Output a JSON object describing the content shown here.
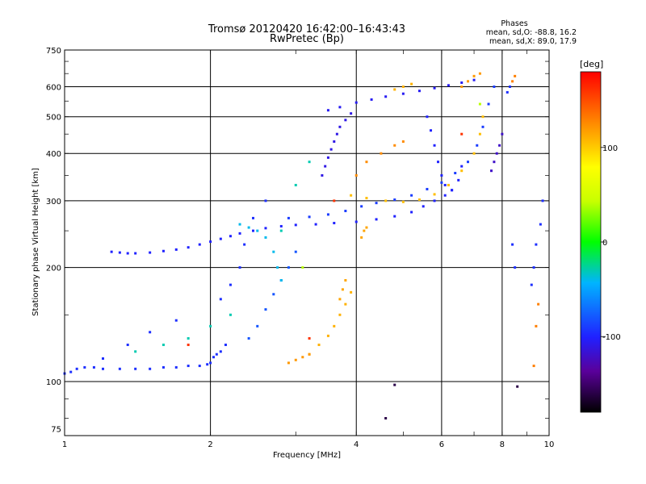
{
  "chart_data": {
    "type": "scatter",
    "title": "Tromsø 20120420 16:42:00–16:43:43",
    "subtitle": "RwPretec (Bp)",
    "xlabel": "Frequency [MHz]",
    "ylabel": "Stationary phase Virtual Height [km]",
    "x_scale": "log",
    "y_scale": "log",
    "xlim": [
      1,
      10
    ],
    "ylim": [
      72,
      750
    ],
    "x_ticks": [
      "1",
      "2",
      "4",
      "6",
      "8",
      "10"
    ],
    "x_tick_values": [
      1,
      2,
      4,
      6,
      8,
      10
    ],
    "y_ticks": [
      "75",
      "100",
      "200",
      "300",
      "400",
      "500",
      "600",
      "750"
    ],
    "y_tick_values": [
      75,
      100,
      200,
      300,
      400,
      500,
      600,
      750
    ],
    "grid": true,
    "stats": {
      "heading": "Phases",
      "line1": "mean, sd,O: -88.8, 16.2",
      "line2": "mean, sd,X: 89.0, 17.9"
    },
    "colorbar": {
      "label": "[deg]",
      "range": [
        -180,
        180
      ],
      "ticks": [
        "100",
        "0",
        "-100"
      ],
      "tick_values": [
        100,
        0,
        -100
      ]
    },
    "series": [
      {
        "phase": -95,
        "points": [
          [
            1.0,
            105
          ],
          [
            1.03,
            106
          ],
          [
            1.06,
            108
          ],
          [
            1.1,
            109
          ],
          [
            1.15,
            109
          ],
          [
            1.2,
            108
          ],
          [
            1.3,
            108
          ],
          [
            1.4,
            108
          ],
          [
            1.5,
            108
          ],
          [
            1.6,
            109
          ],
          [
            1.7,
            109
          ],
          [
            1.8,
            110
          ],
          [
            1.9,
            110
          ],
          [
            1.97,
            111
          ],
          [
            2.0,
            112
          ],
          [
            2.03,
            116
          ],
          [
            2.06,
            118
          ],
          [
            2.1,
            120
          ],
          [
            2.15,
            125
          ]
        ]
      },
      {
        "phase": -100,
        "points": [
          [
            1.25,
            220
          ],
          [
            1.3,
            219
          ],
          [
            1.35,
            218
          ],
          [
            1.4,
            218
          ],
          [
            1.5,
            219
          ],
          [
            1.6,
            221
          ],
          [
            1.7,
            223
          ],
          [
            1.8,
            226
          ],
          [
            1.9,
            230
          ],
          [
            2.0,
            234
          ],
          [
            2.1,
            238
          ],
          [
            2.2,
            242
          ],
          [
            2.3,
            246
          ],
          [
            2.45,
            250
          ],
          [
            2.6,
            254
          ],
          [
            2.8,
            257
          ],
          [
            3.0,
            259
          ],
          [
            3.3,
            260
          ],
          [
            3.6,
            262
          ],
          [
            4.0,
            264
          ],
          [
            4.4,
            268
          ],
          [
            4.8,
            273
          ],
          [
            5.2,
            280
          ],
          [
            5.5,
            290
          ],
          [
            5.8,
            300
          ],
          [
            6.1,
            310
          ],
          [
            6.3,
            320
          ],
          [
            6.5,
            340
          ],
          [
            6.6,
            370
          ]
        ]
      },
      {
        "phase": -90,
        "points": [
          [
            2.9,
            270
          ],
          [
            3.2,
            272
          ],
          [
            3.5,
            276
          ],
          [
            3.8,
            282
          ],
          [
            4.1,
            290
          ],
          [
            4.4,
            296
          ],
          [
            4.8,
            302
          ],
          [
            5.2,
            310
          ],
          [
            5.6,
            322
          ],
          [
            6.0,
            335
          ],
          [
            6.4,
            355
          ],
          [
            6.8,
            380
          ],
          [
            7.1,
            420
          ],
          [
            7.3,
            470
          ],
          [
            7.5,
            540
          ],
          [
            7.7,
            600
          ]
        ]
      },
      {
        "phase": -105,
        "points": [
          [
            3.5,
            520
          ],
          [
            3.7,
            530
          ],
          [
            4.0,
            545
          ],
          [
            4.3,
            555
          ],
          [
            4.6,
            565
          ],
          [
            5.0,
            575
          ],
          [
            5.4,
            585
          ],
          [
            5.8,
            595
          ],
          [
            6.2,
            605
          ],
          [
            6.6,
            615
          ],
          [
            7.0,
            625
          ]
        ]
      },
      {
        "phase": -110,
        "points": [
          [
            3.4,
            350
          ],
          [
            3.45,
            370
          ],
          [
            3.5,
            390
          ],
          [
            3.55,
            410
          ],
          [
            3.6,
            430
          ],
          [
            3.65,
            450
          ],
          [
            3.7,
            470
          ],
          [
            3.8,
            490
          ],
          [
            3.9,
            510
          ]
        ]
      },
      {
        "phase": -80,
        "points": [
          [
            2.4,
            130
          ],
          [
            2.5,
            140
          ],
          [
            2.6,
            155
          ],
          [
            2.7,
            170
          ],
          [
            2.8,
            185
          ],
          [
            2.9,
            200
          ],
          [
            3.0,
            220
          ]
        ]
      },
      {
        "phase": -100,
        "points": [
          [
            5.6,
            500
          ],
          [
            5.7,
            460
          ],
          [
            5.8,
            420
          ],
          [
            5.9,
            380
          ],
          [
            6.0,
            350
          ],
          [
            6.1,
            330
          ],
          [
            6.3,
            320
          ]
        ]
      },
      {
        "phase": -120,
        "points": [
          [
            7.6,
            360
          ],
          [
            7.7,
            380
          ],
          [
            7.8,
            400
          ],
          [
            7.9,
            420
          ],
          [
            8.0,
            450
          ]
        ]
      },
      {
        "phase": 110,
        "points": [
          [
            3.2,
            118
          ],
          [
            3.35,
            125
          ],
          [
            3.5,
            132
          ],
          [
            3.6,
            140
          ],
          [
            3.7,
            150
          ],
          [
            3.8,
            160
          ],
          [
            3.9,
            172
          ]
        ]
      },
      {
        "phase": 120,
        "points": [
          [
            2.9,
            112
          ],
          [
            3.0,
            114
          ],
          [
            3.1,
            116
          ],
          [
            3.2,
            118
          ]
        ]
      },
      {
        "phase": 115,
        "points": [
          [
            3.7,
            165
          ],
          [
            3.75,
            175
          ],
          [
            3.8,
            185
          ]
        ]
      },
      {
        "phase": 105,
        "points": [
          [
            3.9,
            310
          ],
          [
            4.2,
            305
          ],
          [
            4.6,
            300
          ],
          [
            5.0,
            298
          ],
          [
            5.4,
            302
          ],
          [
            5.8,
            312
          ],
          [
            6.2,
            330
          ],
          [
            6.6,
            360
          ],
          [
            7.0,
            400
          ],
          [
            7.2,
            450
          ],
          [
            7.3,
            500
          ]
        ]
      },
      {
        "phase": 125,
        "points": [
          [
            4.0,
            350
          ],
          [
            4.2,
            380
          ],
          [
            4.5,
            400
          ],
          [
            4.8,
            420
          ],
          [
            5.0,
            430
          ]
        ]
      },
      {
        "phase": 120,
        "points": [
          [
            6.6,
            600
          ],
          [
            6.8,
            620
          ],
          [
            7.0,
            640
          ],
          [
            7.2,
            650
          ]
        ]
      },
      {
        "phase": 110,
        "points": [
          [
            4.8,
            590
          ],
          [
            5.0,
            600
          ],
          [
            5.2,
            610
          ]
        ]
      },
      {
        "phase": 115,
        "points": [
          [
            4.1,
            240
          ],
          [
            4.15,
            250
          ],
          [
            4.2,
            255
          ]
        ]
      },
      {
        "phase": 130,
        "points": [
          [
            8.4,
            620
          ],
          [
            8.5,
            640
          ],
          [
            9.3,
            110
          ],
          [
            9.4,
            140
          ],
          [
            9.5,
            160
          ]
        ]
      },
      {
        "phase": -40,
        "points": [
          [
            2.3,
            260
          ],
          [
            2.4,
            255
          ],
          [
            2.5,
            250
          ],
          [
            2.6,
            240
          ],
          [
            2.7,
            220
          ],
          [
            2.75,
            200
          ],
          [
            2.8,
            185
          ]
        ]
      },
      {
        "phase": -30,
        "points": [
          [
            1.6,
            125
          ],
          [
            1.8,
            130
          ],
          [
            2.0,
            140
          ],
          [
            2.2,
            150
          ],
          [
            1.4,
            120
          ],
          [
            2.8,
            250
          ],
          [
            3.0,
            330
          ],
          [
            3.2,
            380
          ]
        ]
      },
      {
        "phase": 40,
        "points": [
          [
            3.1,
            200
          ],
          [
            7.2,
            540
          ]
        ]
      },
      {
        "phase": 160,
        "points": [
          [
            1.8,
            125
          ],
          [
            3.2,
            130
          ],
          [
            3.6,
            300
          ],
          [
            6.6,
            450
          ]
        ]
      },
      {
        "phase": -160,
        "points": [
          [
            4.8,
            98
          ],
          [
            8.6,
            97
          ],
          [
            4.6,
            80
          ]
        ]
      },
      {
        "phase": -95,
        "points": [
          [
            1.2,
            115
          ],
          [
            1.35,
            125
          ],
          [
            1.5,
            135
          ],
          [
            1.7,
            145
          ],
          [
            2.1,
            165
          ],
          [
            2.2,
            180
          ],
          [
            2.3,
            200
          ],
          [
            2.35,
            230
          ],
          [
            2.45,
            270
          ],
          [
            2.6,
            300
          ],
          [
            8.2,
            580
          ],
          [
            8.3,
            600
          ],
          [
            8.4,
            230
          ],
          [
            8.5,
            200
          ],
          [
            9.2,
            180
          ],
          [
            9.3,
            200
          ],
          [
            9.4,
            230
          ],
          [
            9.6,
            260
          ],
          [
            9.7,
            300
          ]
        ]
      }
    ]
  }
}
